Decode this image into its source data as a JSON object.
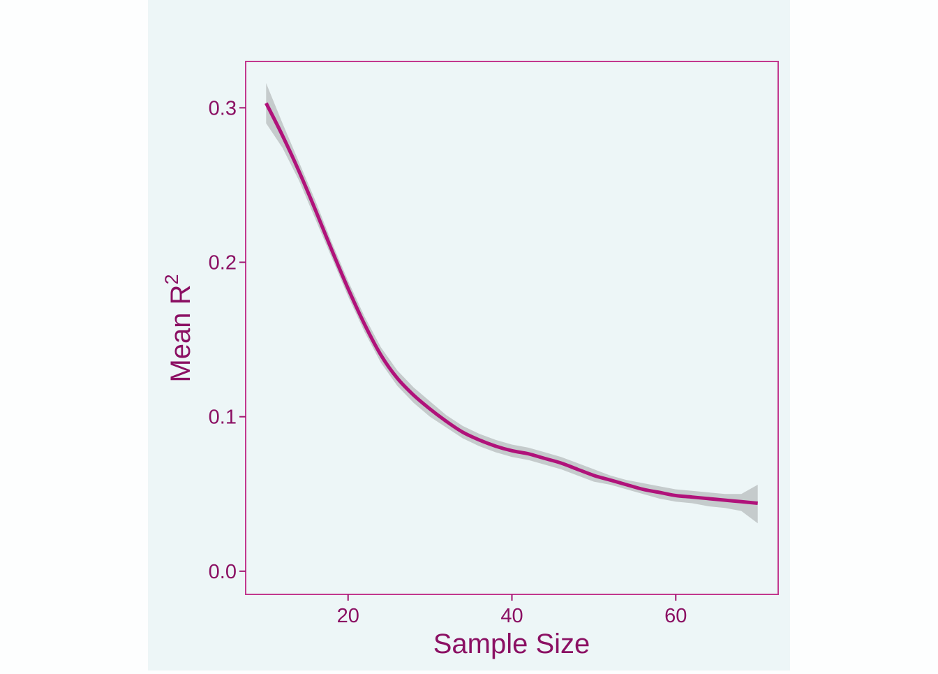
{
  "chart_data": {
    "type": "line",
    "title": "",
    "xlabel": "Sample Size",
    "ylabel_main": "Mean R",
    "ylabel_superscript": "2",
    "xlim": [
      7.5,
      72.5
    ],
    "ylim": [
      -0.015,
      0.33
    ],
    "x_ticks": [
      20,
      40,
      60
    ],
    "x_tick_labels": [
      "20",
      "40",
      "60"
    ],
    "y_ticks": [
      0.0,
      0.1,
      0.2,
      0.3
    ],
    "y_tick_labels": [
      "0.0",
      "0.1",
      "0.2",
      "0.3"
    ],
    "grid": false,
    "series": [
      {
        "x": [
          10,
          12,
          14,
          16,
          18,
          20,
          22,
          24,
          26,
          28,
          30,
          32,
          34,
          36,
          38,
          40,
          42,
          44,
          46,
          48,
          50,
          52,
          54,
          56,
          58,
          60,
          62,
          64,
          66,
          68,
          70
        ],
        "y": [
          0.303,
          0.282,
          0.259,
          0.234,
          0.208,
          0.183,
          0.16,
          0.14,
          0.125,
          0.114,
          0.105,
          0.097,
          0.09,
          0.085,
          0.081,
          0.078,
          0.076,
          0.073,
          0.07,
          0.066,
          0.062,
          0.059,
          0.056,
          0.053,
          0.051,
          0.049,
          0.048,
          0.047,
          0.046,
          0.045,
          0.044
        ],
        "ci_upper": [
          0.316,
          0.29,
          0.265,
          0.24,
          0.213,
          0.188,
          0.165,
          0.145,
          0.13,
          0.119,
          0.11,
          0.101,
          0.094,
          0.089,
          0.085,
          0.082,
          0.08,
          0.077,
          0.074,
          0.07,
          0.066,
          0.062,
          0.059,
          0.057,
          0.055,
          0.053,
          0.052,
          0.051,
          0.05,
          0.05,
          0.056
        ],
        "ci_lower": [
          0.29,
          0.274,
          0.253,
          0.228,
          0.203,
          0.178,
          0.155,
          0.135,
          0.12,
          0.109,
          0.1,
          0.093,
          0.086,
          0.081,
          0.077,
          0.074,
          0.072,
          0.069,
          0.066,
          0.062,
          0.058,
          0.056,
          0.053,
          0.05,
          0.047,
          0.045,
          0.044,
          0.042,
          0.041,
          0.039,
          0.031
        ]
      }
    ]
  },
  "colors": {
    "page_background": "#fdfefe",
    "plot_background": "#edf6f7",
    "panel_border": "#c2388e",
    "line": "#b0127a",
    "ribbon": "#c5cbcc",
    "text": "#8b1063",
    "tick": "#a01670"
  }
}
